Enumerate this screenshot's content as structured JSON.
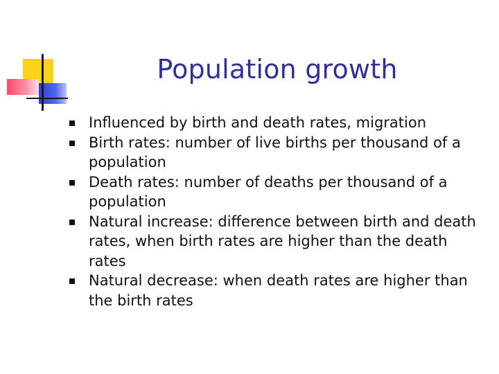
{
  "slide": {
    "title": "Population growth",
    "bullets": [
      {
        "text": "Influenced by birth and death rates, migration"
      },
      {
        "text": "Birth rates: number of live births per thousand of a population"
      },
      {
        "text": "Death rates: number of deaths per thousand of a population"
      },
      {
        "text": "Natural increase: difference between birth and death rates, when birth rates are higher than the death rates"
      },
      {
        "text": "Natural decrease: when death rates are higher than the birth rates"
      }
    ]
  },
  "colors": {
    "title": "#2f3194",
    "logo_yellow": "#ffd21a",
    "logo_red": "#ff4a6a",
    "logo_blue": "#2f3fd6"
  },
  "icons": {
    "bullet_marker": "square-bullet-icon",
    "logo": "slide-logo-icon"
  }
}
